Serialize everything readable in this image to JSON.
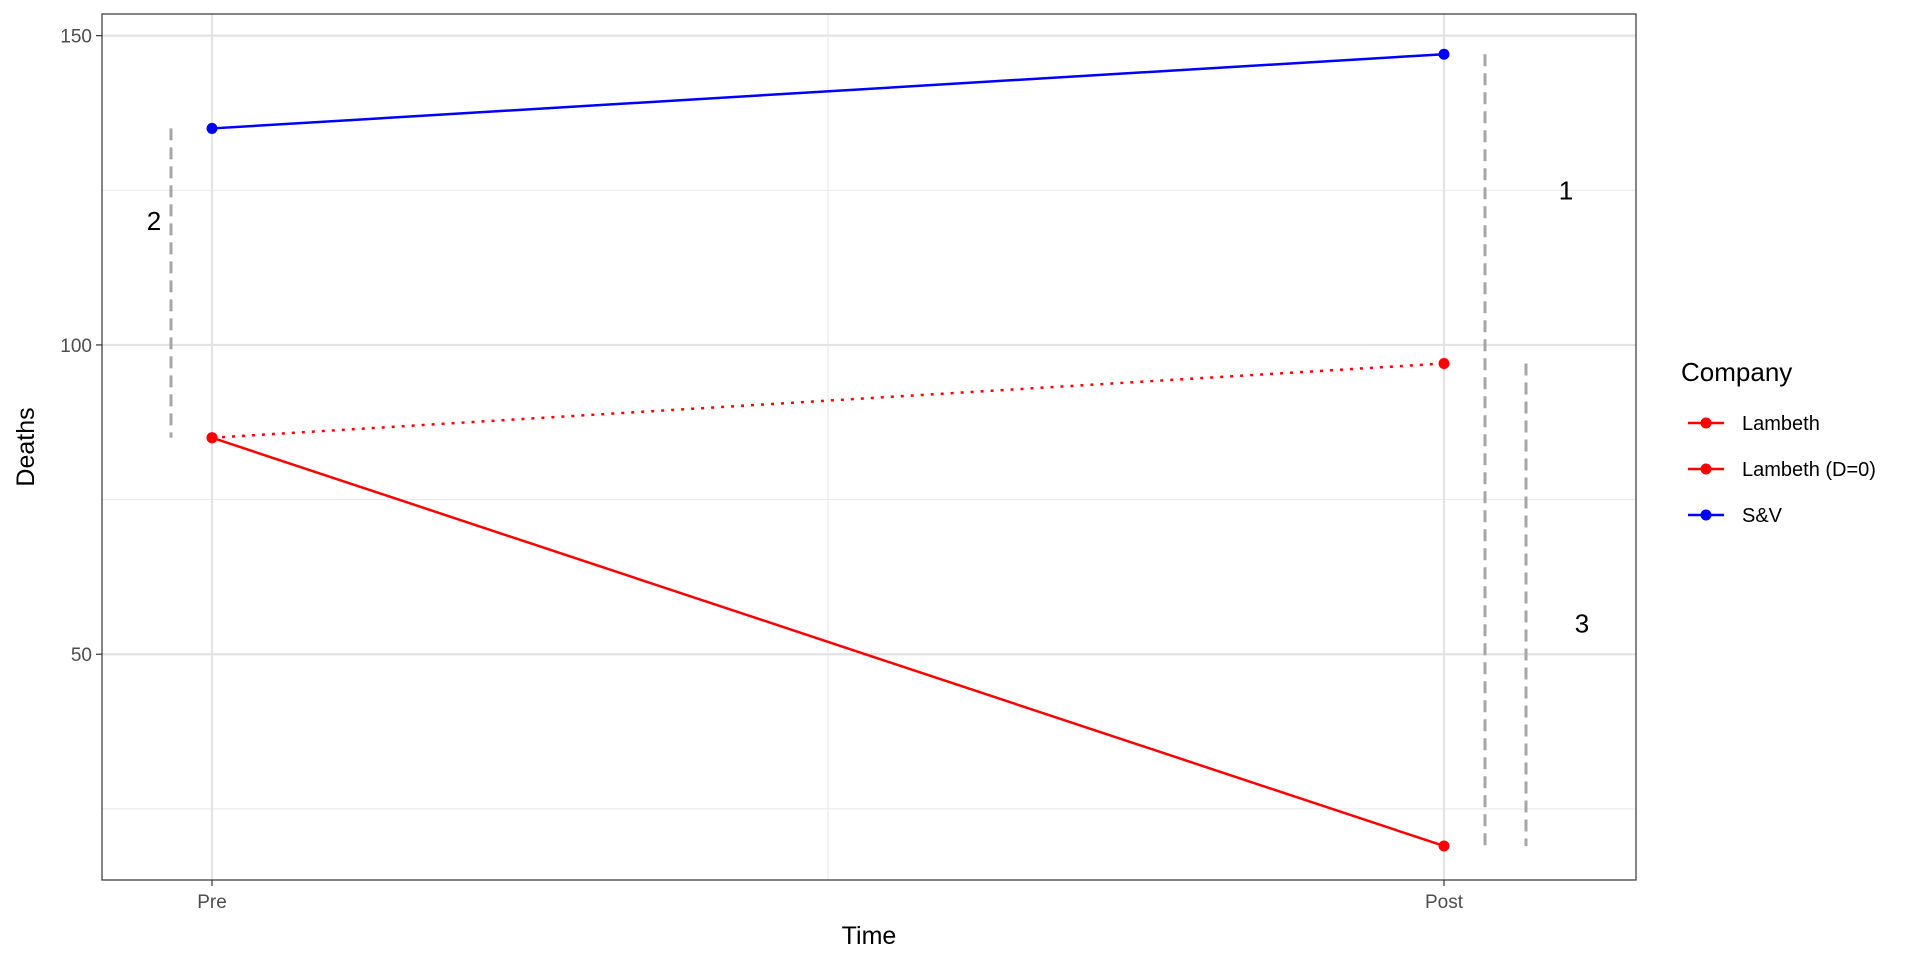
{
  "chart_data": {
    "type": "line",
    "xlabel": "Time",
    "ylabel": "Deaths",
    "categories": [
      "Pre",
      "Post"
    ],
    "ylim": [
      13.5,
      153.5
    ],
    "yticks": [
      50,
      100,
      150
    ],
    "grid": true,
    "legend": {
      "title": "Company",
      "position": "right"
    },
    "series": [
      {
        "name": "Lambeth",
        "values": [
          85,
          19
        ],
        "color": "#ff0000",
        "line": "solid"
      },
      {
        "name": "Lambeth (D=0)",
        "values": [
          85,
          97
        ],
        "color": "#ff0000",
        "line": "dotted"
      },
      {
        "name": "S&V",
        "values": [
          135,
          147
        ],
        "color": "#0000ff",
        "line": "solid"
      }
    ],
    "guides": [
      {
        "x_pos": "before-Pre",
        "from": 85,
        "to": 135,
        "color": "#a6a6a6"
      },
      {
        "x_pos": "after-Post-1",
        "from": 19,
        "to": 147,
        "color": "#a6a6a6"
      },
      {
        "x_pos": "after-Post-2",
        "from": 19,
        "to": 97,
        "color": "#a6a6a6"
      }
    ],
    "annotations": [
      {
        "text": "1",
        "x_pos": "after-Post",
        "y": 125
      },
      {
        "text": "2",
        "x_pos": "before-Pre",
        "y": 120
      },
      {
        "text": "3",
        "x_pos": "after-Post",
        "y": 55
      }
    ]
  }
}
